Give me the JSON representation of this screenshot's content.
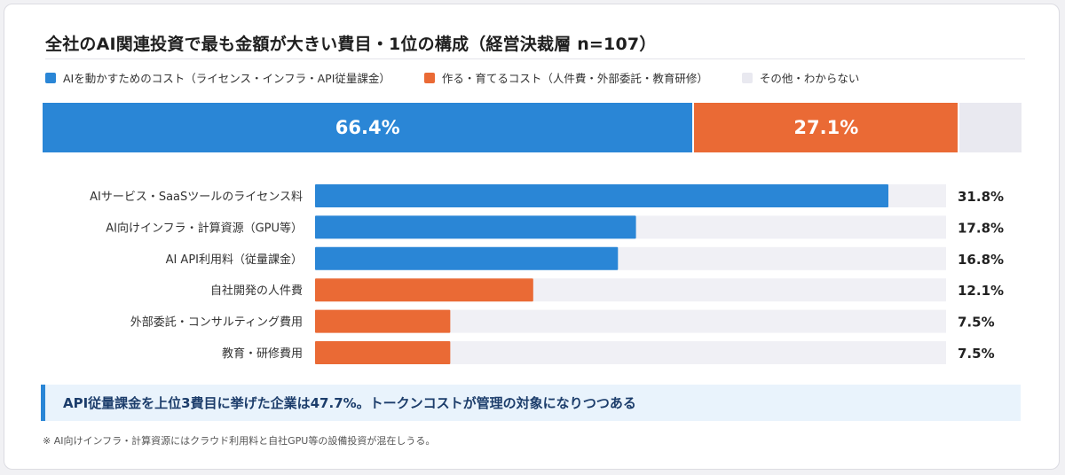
{
  "title": "全社のAI関連投資で最も金額が大きい費目・1位の構成（経営決裁層 n=107）",
  "legend": [
    {
      "label": "AIを動かすためのコスト（ライセンス・インフラ・API従量課金）",
      "color": "#2a86d6"
    },
    {
      "label": "作る・育てるコスト（人件費・外部委託・教育研修）",
      "color": "#ea6a35"
    },
    {
      "label": "その他・わからない",
      "color": "#e9e9f0"
    }
  ],
  "colors": {
    "run": "#2a86d6",
    "build": "#ea6a35",
    "other": "#e9e9f0",
    "track": "#f0f0f5",
    "value_text": "#222222",
    "label_text": "#333333"
  },
  "chart_data": [
    {
      "type": "bar",
      "orientation": "horizontal",
      "stacked": true,
      "series": [
        {
          "name": "AIを動かすためのコスト（ライセンス・インフラ・API従量課金）",
          "value": 66.4,
          "label": "66.4%"
        },
        {
          "name": "作る・育てるコスト（人件費・外部委託・教育研修）",
          "value": 27.1,
          "label": "27.1%"
        },
        {
          "name": "その他・わからない",
          "value": 6.5,
          "label": ""
        }
      ]
    },
    {
      "type": "bar",
      "orientation": "horizontal",
      "categories": [
        "AIサービス・SaaSツールのライセンス料",
        "AI向けインフラ・計算資源（GPU等）",
        "AI API利用料（従量課金）",
        "自社開発の人件費",
        "外部委託・コンサルティング費用",
        "教育・研修費用"
      ],
      "values": [
        31.8,
        17.8,
        16.8,
        12.1,
        7.5,
        7.5
      ],
      "value_labels": [
        "31.8%",
        "17.8%",
        "16.8%",
        "12.1%",
        "7.5%",
        "7.5%"
      ],
      "groups": [
        "run",
        "run",
        "run",
        "build",
        "build",
        "build"
      ],
      "xlim": [
        0,
        35
      ]
    }
  ],
  "highlight": "API従量課金を上位3費目に挙げた企業は47.7%。トークンコストが管理の対象になりつつある",
  "footnote": "※ AI向けインフラ・計算資源にはクラウド利用料と自社GPU等の設備投資が混在しうる。"
}
